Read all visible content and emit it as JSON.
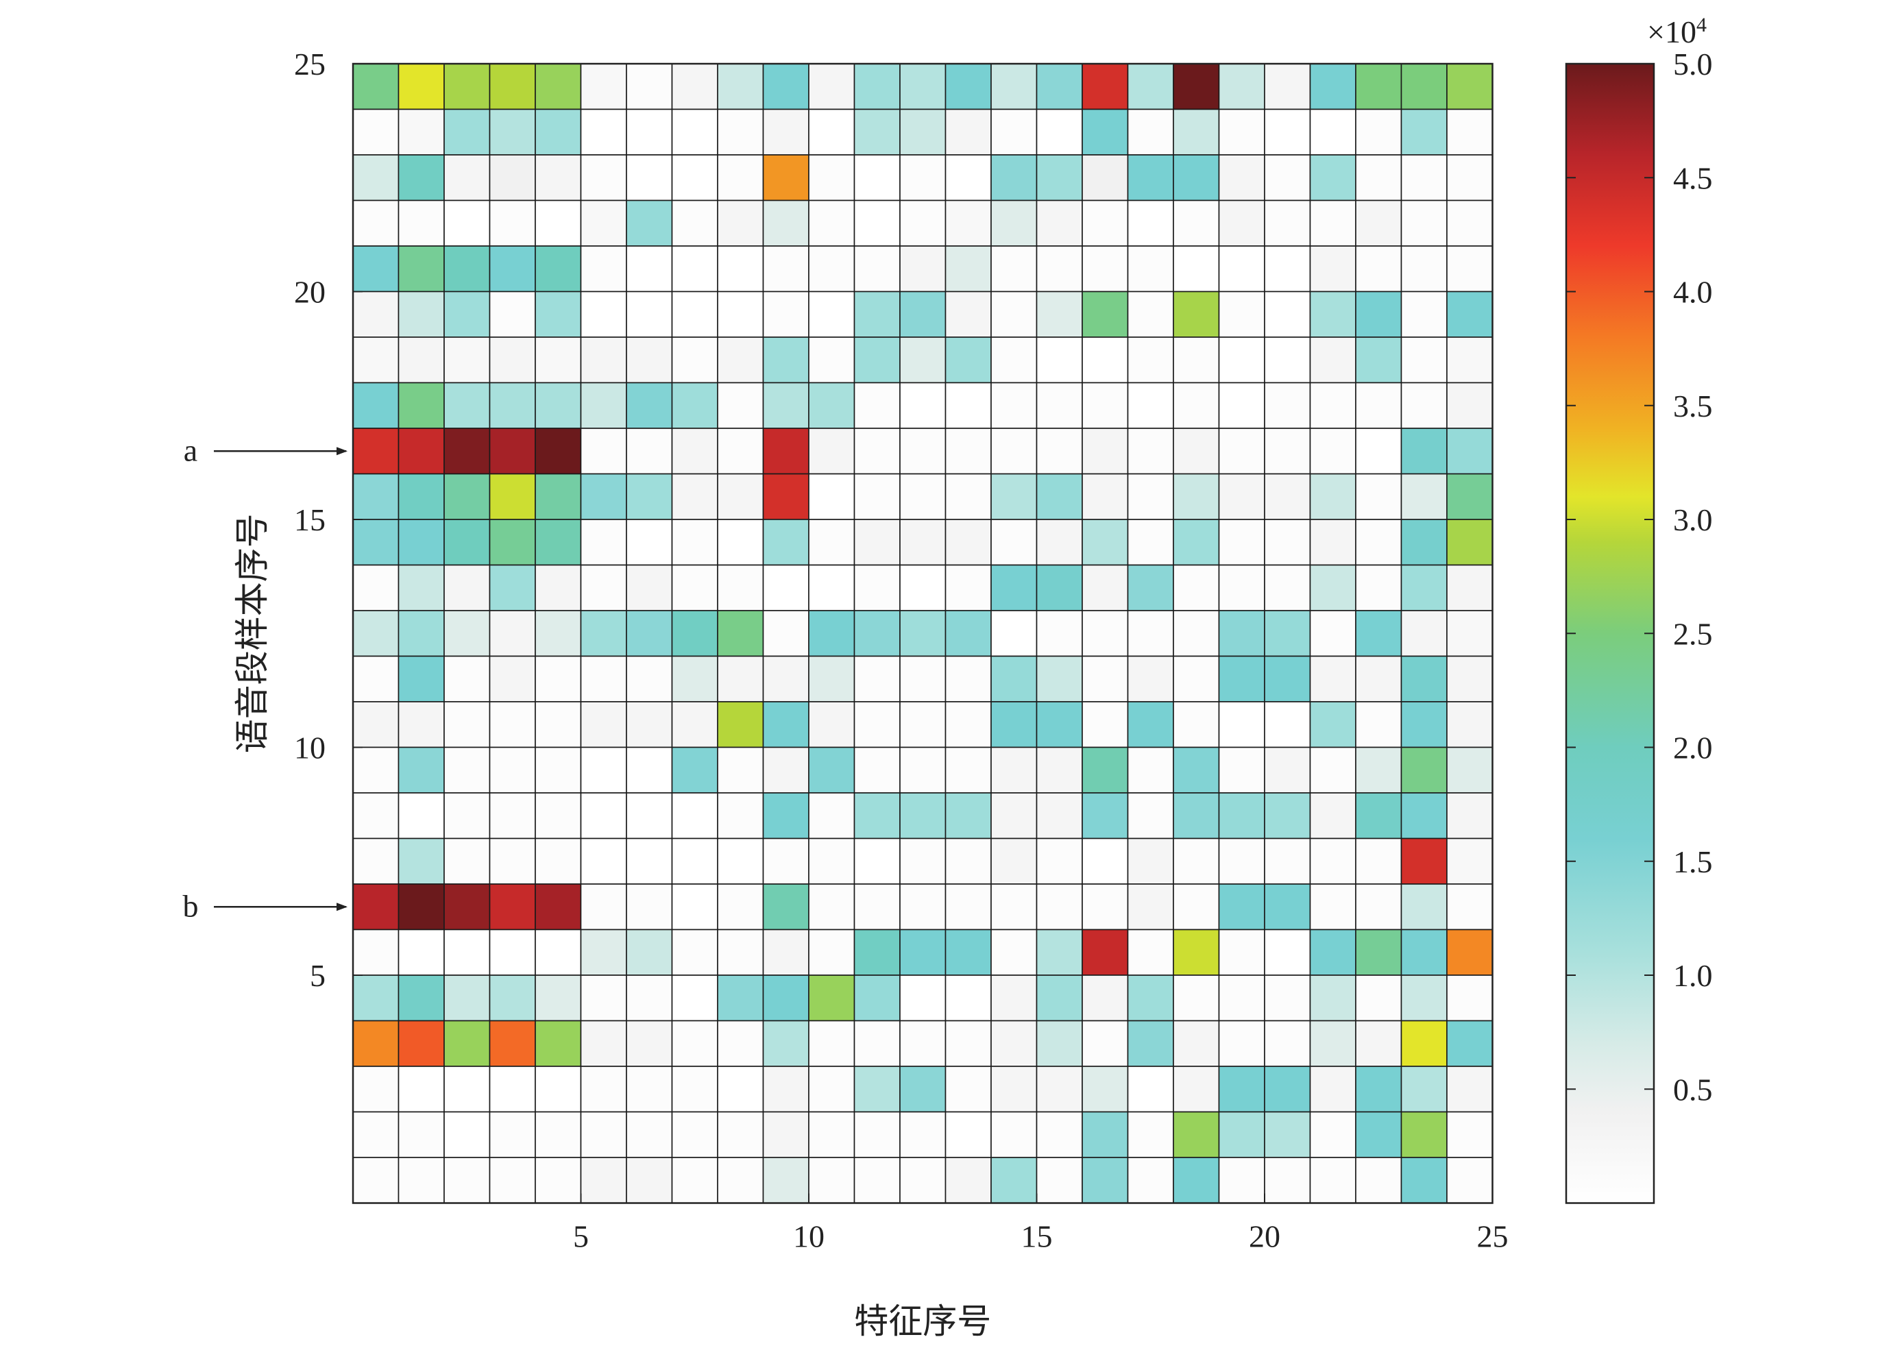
{
  "chart_data": {
    "type": "heatmap",
    "xlabel": "特征序号",
    "ylabel": "语音段样本序号",
    "x_ticks": [
      "5",
      "10",
      "15",
      "20",
      "25"
    ],
    "y_ticks": [
      "5",
      "10",
      "15",
      "20",
      "25"
    ],
    "colorbar": {
      "min": 0,
      "max": 50000,
      "exponent_label": "×10",
      "exponent_power": "4",
      "tick_labels": [
        "0.5",
        "1.0",
        "1.5",
        "2.0",
        "2.5",
        "3.0",
        "3.5",
        "4.0",
        "4.5",
        "5.0"
      ]
    },
    "annotations": [
      {
        "label": "a",
        "row": 17
      },
      {
        "label": "b",
        "row": 7
      }
    ],
    "grid": true,
    "units_per_cell": 1000,
    "rows": [
      {
        "y": 25,
        "values": [
          24,
          31,
          28,
          29,
          27,
          2,
          1,
          3,
          8,
          16,
          3,
          12,
          10,
          16,
          8,
          14,
          44,
          10,
          50,
          8,
          3,
          16,
          25,
          25,
          27
        ]
      },
      {
        "y": 24,
        "values": [
          1,
          2,
          12,
          10,
          12,
          0,
          0,
          0,
          1,
          3,
          0,
          10,
          8,
          3,
          1,
          0,
          16,
          1,
          8,
          1,
          0,
          0,
          1,
          12,
          1
        ]
      },
      {
        "y": 23,
        "values": [
          7,
          19,
          3,
          4,
          3,
          1,
          0,
          0,
          1,
          36,
          1,
          0,
          1,
          0,
          14,
          12,
          4,
          16,
          16,
          3,
          1,
          12,
          1,
          1,
          1
        ]
      },
      {
        "y": 22,
        "values": [
          1,
          1,
          0,
          1,
          0,
          2,
          13,
          1,
          3,
          6,
          1,
          0,
          1,
          2,
          6,
          3,
          1,
          0,
          1,
          3,
          1,
          1,
          3,
          1,
          1
        ]
      },
      {
        "y": 21,
        "values": [
          16,
          23,
          20,
          16,
          20,
          1,
          0,
          0,
          0,
          1,
          1,
          1,
          3,
          6,
          1,
          1,
          1,
          1,
          0,
          0,
          0,
          3,
          1,
          1,
          1
        ]
      },
      {
        "y": 20,
        "values": [
          3,
          8,
          12,
          1,
          12,
          0,
          0,
          0,
          0,
          1,
          0,
          12,
          14,
          3,
          1,
          6,
          24,
          1,
          28,
          1,
          0,
          11,
          16,
          1,
          16
        ]
      },
      {
        "y": 19,
        "values": [
          2,
          3,
          2,
          3,
          2,
          3,
          3,
          1,
          3,
          12,
          1,
          12,
          6,
          12,
          1,
          0,
          0,
          1,
          1,
          0,
          0,
          3,
          12,
          1,
          2
        ]
      },
      {
        "y": 18,
        "values": [
          16,
          24,
          11,
          11,
          11,
          8,
          15,
          12,
          1,
          10,
          11,
          1,
          0,
          0,
          1,
          1,
          1,
          0,
          1,
          0,
          1,
          1,
          1,
          1,
          3
        ]
      },
      {
        "y": 17,
        "values": [
          44,
          45,
          49,
          47,
          50,
          1,
          1,
          3,
          1,
          45,
          3,
          1,
          1,
          1,
          1,
          1,
          3,
          1,
          3,
          1,
          1,
          1,
          0,
          17,
          13
        ]
      },
      {
        "y": 16,
        "values": [
          14,
          19,
          22,
          30,
          22,
          14,
          12,
          3,
          3,
          44,
          0,
          1,
          1,
          1,
          10,
          13,
          3,
          1,
          8,
          3,
          3,
          8,
          1,
          6,
          23
        ]
      },
      {
        "y": 15,
        "values": [
          15,
          16,
          20,
          23,
          21,
          1,
          0,
          1,
          0,
          12,
          1,
          3,
          3,
          3,
          1,
          3,
          10,
          1,
          12,
          1,
          1,
          3,
          1,
          17,
          28
        ]
      },
      {
        "y": 14,
        "values": [
          1,
          8,
          3,
          12,
          3,
          1,
          3,
          1,
          1,
          0,
          0,
          1,
          0,
          1,
          16,
          17,
          3,
          14,
          1,
          1,
          1,
          8,
          1,
          12,
          3
        ]
      },
      {
        "y": 13,
        "values": [
          8,
          12,
          6,
          3,
          6,
          12,
          14,
          19,
          24,
          1,
          16,
          14,
          12,
          14,
          0,
          1,
          1,
          1,
          1,
          14,
          13,
          1,
          16,
          3,
          2
        ]
      },
      {
        "y": 12,
        "values": [
          1,
          16,
          1,
          3,
          1,
          1,
          1,
          6,
          3,
          3,
          6,
          1,
          1,
          1,
          13,
          8,
          1,
          3,
          1,
          16,
          16,
          3,
          3,
          17,
          3
        ]
      },
      {
        "y": 11,
        "values": [
          3,
          3,
          1,
          1,
          1,
          3,
          3,
          3,
          29,
          16,
          3,
          1,
          1,
          1,
          16,
          16,
          1,
          16,
          1,
          0,
          0,
          12,
          1,
          16,
          3
        ]
      },
      {
        "y": 10,
        "values": [
          1,
          14,
          1,
          1,
          1,
          0,
          0,
          15,
          1,
          3,
          15,
          1,
          1,
          1,
          3,
          3,
          21,
          1,
          15,
          1,
          3,
          1,
          6,
          24,
          6
        ]
      },
      {
        "y": 9,
        "values": [
          1,
          0,
          1,
          1,
          1,
          0,
          0,
          0,
          1,
          16,
          1,
          12,
          12,
          12,
          3,
          3,
          15,
          1,
          14,
          13,
          12,
          3,
          18,
          16,
          3
        ]
      },
      {
        "y": 8,
        "values": [
          1,
          10,
          1,
          1,
          1,
          0,
          0,
          0,
          0,
          1,
          1,
          0,
          1,
          1,
          3,
          1,
          0,
          3,
          1,
          1,
          1,
          1,
          1,
          44,
          2
        ]
      },
      {
        "y": 7,
        "values": [
          46,
          50,
          48,
          45,
          47,
          1,
          1,
          0,
          1,
          21,
          1,
          1,
          1,
          1,
          1,
          1,
          1,
          3,
          1,
          16,
          16,
          1,
          1,
          8,
          1
        ]
      },
      {
        "y": 6,
        "values": [
          1,
          0,
          0,
          0,
          0,
          6,
          8,
          1,
          1,
          3,
          1,
          19,
          16,
          16,
          1,
          10,
          45,
          1,
          30,
          1,
          0,
          16,
          23,
          16,
          37
        ]
      },
      {
        "y": 5,
        "values": [
          11,
          18,
          8,
          10,
          6,
          1,
          1,
          0,
          14,
          16,
          27,
          13,
          0,
          0,
          3,
          12,
          3,
          12,
          1,
          1,
          1,
          8,
          1,
          8,
          1
        ]
      },
      {
        "y": 4,
        "values": [
          37,
          40,
          27,
          39,
          27,
          3,
          3,
          1,
          1,
          10,
          1,
          1,
          1,
          1,
          3,
          8,
          1,
          14,
          3,
          1,
          1,
          6,
          3,
          31,
          16
        ]
      },
      {
        "y": 3,
        "values": [
          1,
          0,
          0,
          0,
          0,
          1,
          1,
          1,
          0,
          3,
          1,
          10,
          14,
          1,
          3,
          3,
          6,
          0,
          3,
          16,
          16,
          3,
          16,
          10,
          3
        ]
      },
      {
        "y": 2,
        "values": [
          1,
          1,
          0,
          1,
          1,
          1,
          1,
          1,
          1,
          3,
          1,
          1,
          1,
          0,
          1,
          1,
          14,
          1,
          27,
          11,
          10,
          1,
          16,
          27,
          1
        ]
      },
      {
        "y": 1,
        "values": [
          1,
          1,
          1,
          1,
          1,
          3,
          3,
          1,
          1,
          6,
          1,
          1,
          1,
          3,
          12,
          1,
          14,
          1,
          16,
          1,
          1,
          1,
          1,
          16,
          1
        ]
      }
    ]
  }
}
